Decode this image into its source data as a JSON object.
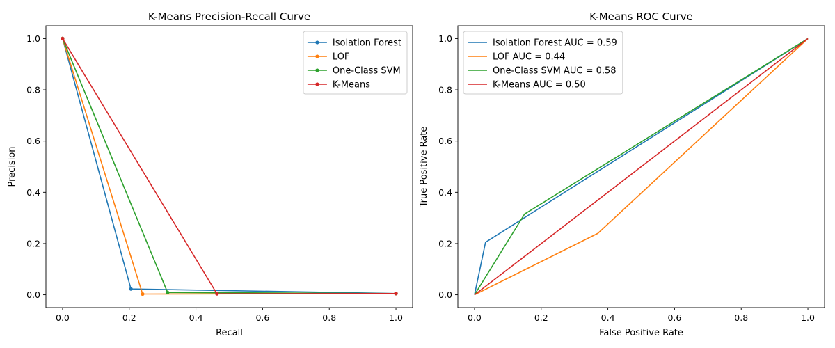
{
  "chart_data": [
    {
      "type": "line",
      "title": "K-Means Precision-Recall Curve",
      "xlabel": "Recall",
      "ylabel": "Precision",
      "xlim": [
        -0.05,
        1.05
      ],
      "ylim": [
        -0.05,
        1.05
      ],
      "xticks": [
        "0.0",
        "0.2",
        "0.4",
        "0.6",
        "0.8",
        "1.0"
      ],
      "yticks": [
        "0.0",
        "0.2",
        "0.4",
        "0.6",
        "0.8",
        "1.0"
      ],
      "grid": false,
      "legend_position": "top-right",
      "markers": true,
      "series": [
        {
          "name": "Isolation Forest",
          "color": "#1f77b4",
          "x": [
            0.0,
            0.205,
            1.0
          ],
          "y": [
            1.0,
            0.023,
            0.005
          ]
        },
        {
          "name": "LOF",
          "color": "#ff7f0e",
          "x": [
            0.0,
            0.24,
            1.0
          ],
          "y": [
            1.0,
            0.003,
            0.005
          ]
        },
        {
          "name": "One-Class SVM",
          "color": "#2ca02c",
          "x": [
            0.0,
            0.315,
            1.0
          ],
          "y": [
            1.0,
            0.009,
            0.005
          ]
        },
        {
          "name": "K-Means",
          "color": "#d62728",
          "x": [
            0.0,
            0.463,
            1.0
          ],
          "y": [
            1.0,
            0.004,
            0.005
          ]
        }
      ]
    },
    {
      "type": "line",
      "title": "K-Means ROC Curve",
      "xlabel": "False Positive Rate",
      "ylabel": "True Positive Rate",
      "xlim": [
        -0.05,
        1.05
      ],
      "ylim": [
        -0.05,
        1.05
      ],
      "xticks": [
        "0.0",
        "0.2",
        "0.4",
        "0.6",
        "0.8",
        "1.0"
      ],
      "yticks": [
        "0.0",
        "0.2",
        "0.4",
        "0.6",
        "0.8",
        "1.0"
      ],
      "grid": false,
      "legend_position": "top-left",
      "markers": false,
      "series": [
        {
          "name": "Isolation Forest AUC = 0.59",
          "color": "#1f77b4",
          "x": [
            0.0,
            0.033,
            1.0
          ],
          "y": [
            0.0,
            0.205,
            1.0
          ]
        },
        {
          "name": "LOF AUC = 0.44",
          "color": "#ff7f0e",
          "x": [
            0.0,
            0.37,
            1.0
          ],
          "y": [
            0.0,
            0.24,
            1.0
          ]
        },
        {
          "name": "One-Class SVM AUC = 0.58",
          "color": "#2ca02c",
          "x": [
            0.0,
            0.15,
            1.0
          ],
          "y": [
            0.0,
            0.315,
            1.0
          ]
        },
        {
          "name": "K-Means AUC = 0.50",
          "color": "#d62728",
          "x": [
            0.0,
            1.0
          ],
          "y": [
            0.0,
            1.0
          ]
        }
      ]
    }
  ]
}
